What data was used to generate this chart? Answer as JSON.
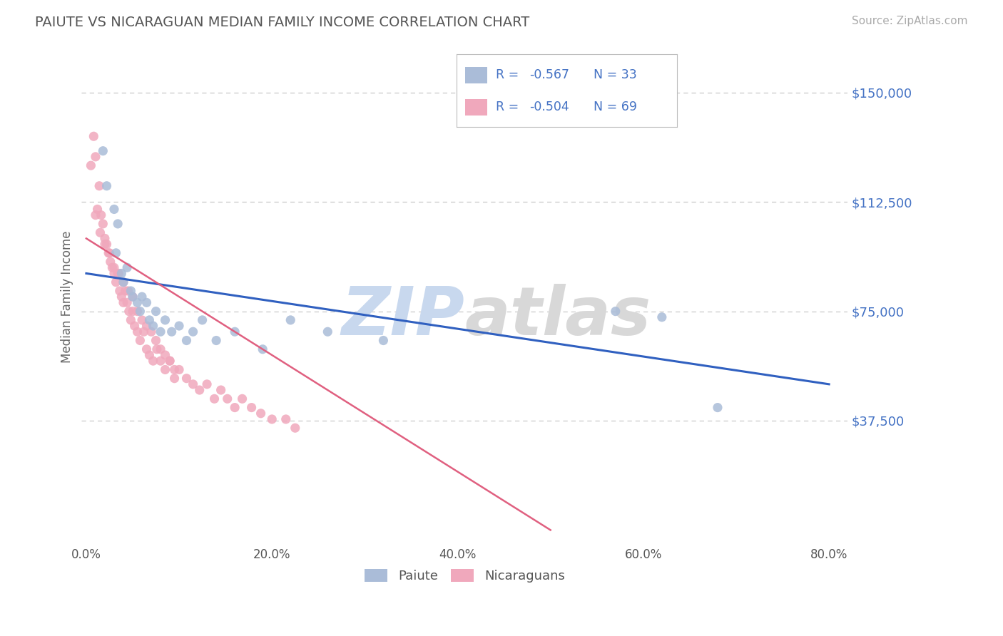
{
  "title": "PAIUTE VS NICARAGUAN MEDIAN FAMILY INCOME CORRELATION CHART",
  "source_text": "Source: ZipAtlas.com",
  "ylabel": "Median Family Income",
  "xlim": [
    -0.005,
    0.82
  ],
  "ylim": [
    -5000,
    165000
  ],
  "yticks": [
    37500,
    75000,
    112500,
    150000
  ],
  "ytick_labels": [
    "$37,500",
    "$75,000",
    "$112,500",
    "$150,000"
  ],
  "xticks": [
    0.0,
    0.2,
    0.4,
    0.6,
    0.8
  ],
  "xtick_labels": [
    "0.0%",
    "20.0%",
    "40.0%",
    "60.0%",
    "80.0%"
  ],
  "blue_line_color": "#3060c0",
  "pink_line_color": "#e06080",
  "dot_blue": "#aabcd8",
  "dot_pink": "#f0a8bc",
  "watermark": "ZIPatlas",
  "watermark_blue": "ZIPat",
  "watermark_gray": "las",
  "title_color": "#555555",
  "axis_label_color": "#666666",
  "ytick_color": "#4472c4",
  "grid_color": "#c8c8c8",
  "legend_text_color": "#4472c4",
  "legend_R_color": "#4472c4",
  "legend_N_color": "#4472c4",
  "blue_line_x0": 0.0,
  "blue_line_y0": 88000,
  "blue_line_x1": 0.8,
  "blue_line_y1": 50000,
  "pink_line_x0": 0.0,
  "pink_line_y0": 100000,
  "pink_line_x1": 0.5,
  "pink_line_y1": 0,
  "paiute_x": [
    0.018,
    0.022,
    0.03,
    0.032,
    0.034,
    0.038,
    0.04,
    0.044,
    0.048,
    0.05,
    0.055,
    0.058,
    0.06,
    0.065,
    0.068,
    0.072,
    0.075,
    0.08,
    0.085,
    0.092,
    0.1,
    0.108,
    0.115,
    0.125,
    0.14,
    0.16,
    0.19,
    0.22,
    0.26,
    0.32,
    0.57,
    0.62,
    0.68
  ],
  "paiute_y": [
    130000,
    118000,
    110000,
    95000,
    105000,
    88000,
    85000,
    90000,
    82000,
    80000,
    78000,
    75000,
    80000,
    78000,
    72000,
    70000,
    75000,
    68000,
    72000,
    68000,
    70000,
    65000,
    68000,
    72000,
    65000,
    68000,
    62000,
    72000,
    68000,
    65000,
    75000,
    73000,
    42000
  ],
  "nicaraguan_x": [
    0.005,
    0.008,
    0.01,
    0.012,
    0.014,
    0.016,
    0.018,
    0.02,
    0.022,
    0.024,
    0.026,
    0.028,
    0.03,
    0.032,
    0.034,
    0.036,
    0.038,
    0.04,
    0.042,
    0.044,
    0.046,
    0.048,
    0.05,
    0.052,
    0.055,
    0.058,
    0.062,
    0.065,
    0.068,
    0.072,
    0.076,
    0.08,
    0.085,
    0.09,
    0.095,
    0.1,
    0.108,
    0.115,
    0.122,
    0.13,
    0.138,
    0.145,
    0.152,
    0.16,
    0.168,
    0.178,
    0.188,
    0.2,
    0.01,
    0.015,
    0.02,
    0.025,
    0.03,
    0.035,
    0.04,
    0.045,
    0.05,
    0.055,
    0.06,
    0.065,
    0.07,
    0.075,
    0.08,
    0.085,
    0.09,
    0.095,
    0.215,
    0.225
  ],
  "nicaraguan_y": [
    125000,
    135000,
    128000,
    110000,
    118000,
    108000,
    105000,
    100000,
    98000,
    95000,
    92000,
    90000,
    88000,
    85000,
    88000,
    82000,
    80000,
    78000,
    82000,
    78000,
    75000,
    72000,
    75000,
    70000,
    68000,
    65000,
    68000,
    62000,
    60000,
    58000,
    62000,
    58000,
    55000,
    58000,
    52000,
    55000,
    52000,
    50000,
    48000,
    50000,
    45000,
    48000,
    45000,
    42000,
    45000,
    42000,
    40000,
    38000,
    108000,
    102000,
    98000,
    95000,
    90000,
    88000,
    85000,
    82000,
    80000,
    75000,
    72000,
    70000,
    68000,
    65000,
    62000,
    60000,
    58000,
    55000,
    38000,
    35000
  ],
  "figsize": [
    14.06,
    8.92
  ],
  "dpi": 100
}
